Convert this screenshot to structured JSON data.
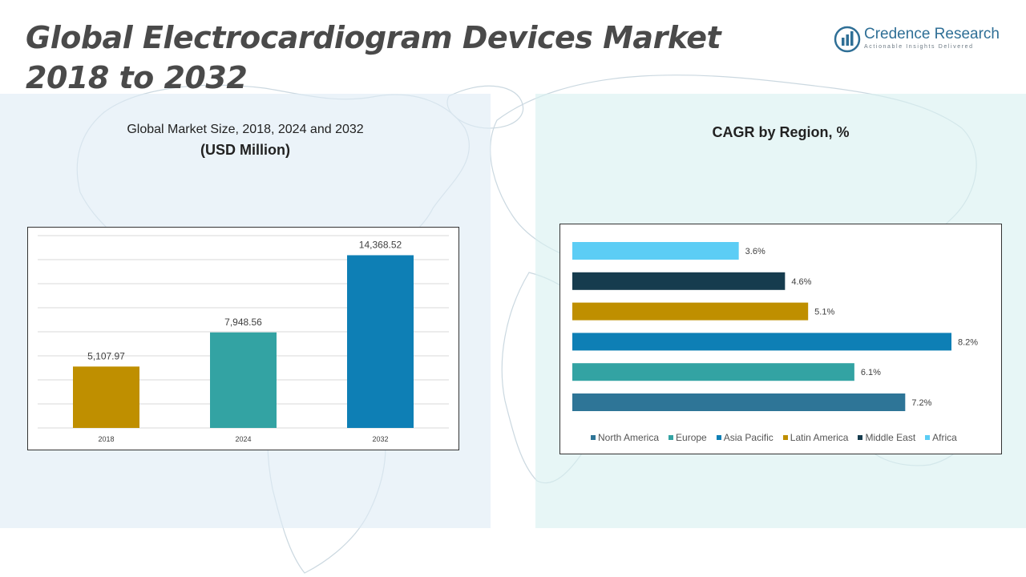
{
  "header": {
    "title": "Global Electrocardiogram Devices Market\n2018 to 2032",
    "logo_name": "Credence Research",
    "logo_tagline": "Actionable Insights Delivered"
  },
  "left_panel": {
    "subtitle": "Global Market Size, 2018, 2024 and 2032",
    "subtitle_unit": "(USD Million)"
  },
  "right_panel": {
    "subtitle": "CAGR by Region, %"
  },
  "chart_data": [
    {
      "type": "bar",
      "title": "Global Market Size, 2018, 2024 and 2032",
      "ylabel": "(USD Million)",
      "categories": [
        "2018",
        "2024",
        "2032"
      ],
      "values": [
        5107.97,
        7948.56,
        14368.52
      ],
      "value_labels": [
        "5,107.97",
        "7,948.56",
        "14,368.52"
      ],
      "colors": [
        "#bf8f00",
        "#33a3a3",
        "#0e7fb5"
      ],
      "ylim": [
        0,
        16000
      ],
      "grid": true
    },
    {
      "type": "bar",
      "orientation": "horizontal",
      "title": "CAGR by Region, %",
      "categories": [
        "North America",
        "Europe",
        "Asia Pacific",
        "Latin America",
        "Middle East",
        "Africa"
      ],
      "values": [
        7.2,
        6.1,
        8.2,
        5.1,
        4.6,
        3.6
      ],
      "value_labels": [
        "7.2%",
        "6.1%",
        "8.2%",
        "5.1%",
        "4.6%",
        "3.6%"
      ],
      "colors": [
        "#2e7597",
        "#33a3a3",
        "#0e7fb5",
        "#bf8f00",
        "#163c4e",
        "#5ccdf5"
      ],
      "xlim": [
        0,
        8.2
      ],
      "legend": "bottom",
      "grid": false
    }
  ]
}
